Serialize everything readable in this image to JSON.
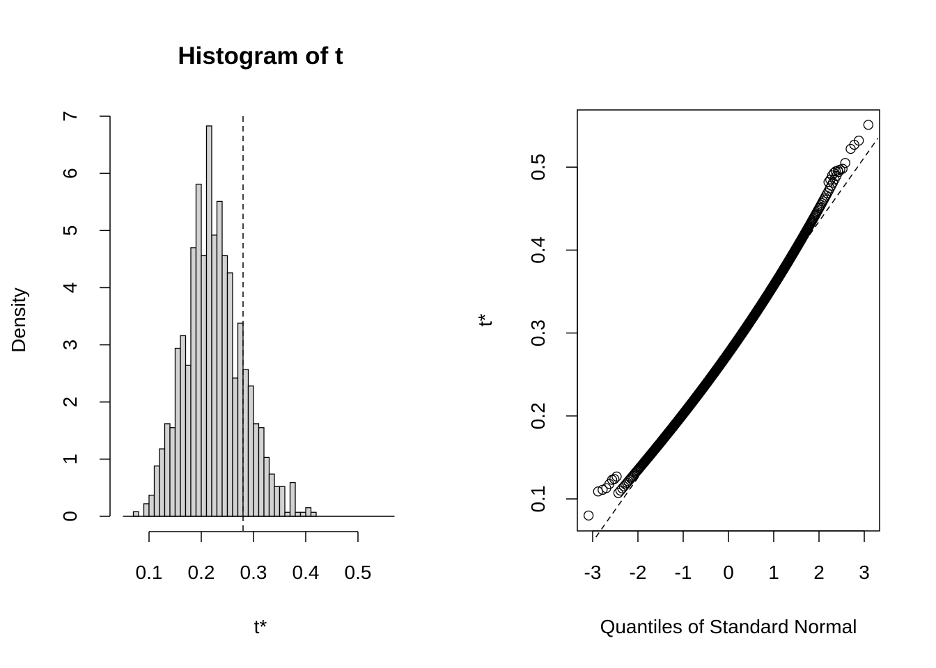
{
  "chart_data": [
    {
      "type": "bar",
      "subtype": "histogram",
      "title": "Histogram of t",
      "xlabel": "t*",
      "ylabel": "Density",
      "xlim": [
        0.05,
        0.57
      ],
      "ylim": [
        0,
        7
      ],
      "xticks": [
        "0.1",
        "0.2",
        "0.3",
        "0.4",
        "0.5"
      ],
      "yticks": [
        "0",
        "1",
        "2",
        "3",
        "4",
        "5",
        "6",
        "7"
      ],
      "bin_width": 0.01,
      "bin_start": 0.07,
      "values": [
        0.08,
        0,
        0.22,
        0.37,
        0.88,
        1.18,
        1.62,
        1.55,
        2.94,
        3.16,
        2.64,
        4.7,
        5.81,
        4.56,
        6.83,
        4.92,
        5.51,
        4.56,
        4.26,
        2.42,
        3.38,
        2.57,
        2.28,
        1.62,
        1.55,
        1.03,
        0.74,
        0.52,
        0.52,
        0.07,
        0.59,
        0.07,
        0.07,
        0.15,
        0.07
      ],
      "reference_line": {
        "x": 0.28,
        "style": "dashed",
        "orientation": "vertical"
      },
      "fill_color": "#d3d3d3",
      "grid": false
    },
    {
      "type": "scatter",
      "subtype": "normal-qq",
      "title": "",
      "xlabel": "Quantiles of Standard Normal",
      "ylabel": "t*",
      "xlim": [
        -3.25,
        3.3
      ],
      "ylim": [
        0.065,
        0.572
      ],
      "xticks": [
        "-3",
        "-2",
        "-1",
        "0",
        "1",
        "2",
        "3"
      ],
      "yticks": [
        "0.1",
        "0.2",
        "0.3",
        "0.4",
        "0.5"
      ],
      "n_points": 1000,
      "reference_line": {
        "intercept": 0.28,
        "slope": 0.0772,
        "style": "dashed"
      },
      "extreme_points": [
        [
          -3.09,
          0.08
        ],
        [
          -2.88,
          0.109
        ],
        [
          -2.78,
          0.111
        ],
        [
          -2.7,
          0.113
        ],
        [
          -2.63,
          0.118
        ],
        [
          -2.57,
          0.123
        ],
        [
          -2.52,
          0.124
        ],
        [
          -2.47,
          0.127
        ],
        [
          3.09,
          0.551
        ],
        [
          2.88,
          0.532
        ],
        [
          2.78,
          0.527
        ],
        [
          2.7,
          0.522
        ],
        [
          2.58,
          0.505
        ],
        [
          2.52,
          0.498
        ],
        [
          2.47,
          0.497
        ],
        [
          2.42,
          0.496
        ],
        [
          2.37,
          0.495
        ],
        [
          2.33,
          0.493
        ],
        [
          2.29,
          0.49
        ],
        [
          2.25,
          0.485
        ],
        [
          2.21,
          0.482
        ]
      ],
      "grid": false
    }
  ]
}
